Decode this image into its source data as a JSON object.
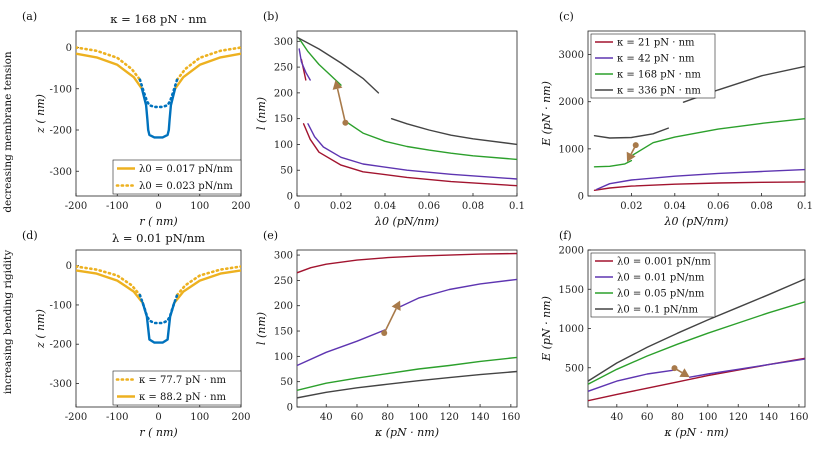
{
  "side_labels": {
    "top": "decreasing membrane tension",
    "bottom": "increasing bending rigidity"
  },
  "colors": {
    "gold": "#EDB120",
    "blue": "#0072BD",
    "red": "#A2142F",
    "purple": "#5E35B1",
    "green": "#2CA02C",
    "gray": "#444444",
    "arrow": "#A87A4A"
  },
  "chart_data": [
    {
      "panel": "(a)",
      "type": "line",
      "title": "κ = 168 pN · nm",
      "xlabel": "r  ( nm)",
      "ylabel": "z  ( nm)",
      "xlim": [
        -200,
        200
      ],
      "ylim": [
        -360,
        40
      ],
      "xticks": [
        "-200",
        "-100",
        "0",
        "100",
        "200"
      ],
      "yticks": [
        "0",
        "-100",
        "-200",
        "-300"
      ],
      "legend": [
        "λ0 = 0.017 pN/nm",
        "λ0 = 0.023 pN/nm"
      ],
      "series": [
        {
          "name": "λ0 = 0.017 pN/nm",
          "style": "solid",
          "color": "gold",
          "x": [
            -200,
            -150,
            -100,
            -60,
            -40
          ],
          "y": [
            -15,
            -24,
            -42,
            -72,
            -100
          ]
        },
        {
          "name": "λ0 = 0.017 pN/nm",
          "style": "solid",
          "color": "gold",
          "x": [
            40,
            60,
            100,
            150,
            200
          ],
          "y": [
            -100,
            -72,
            -42,
            -24,
            -15
          ]
        },
        {
          "name": "λ0 = 0.017 pN/nm",
          "style": "solid",
          "color": "blue",
          "x": [
            -40,
            -30,
            -27,
            -25,
            -22,
            -10,
            0,
            10,
            22,
            25,
            27,
            30,
            40
          ],
          "y": [
            -100,
            -140,
            -175,
            -200,
            -212,
            -218,
            -218,
            -218,
            -212,
            -200,
            -175,
            -140,
            -100
          ]
        },
        {
          "name": "λ0 = 0.023 pN/nm",
          "style": "dotted",
          "color": "gold",
          "x": [
            -200,
            -150,
            -100,
            -65,
            -45
          ],
          "y": [
            0,
            -8,
            -25,
            -52,
            -78
          ]
        },
        {
          "name": "λ0 = 0.023 pN/nm",
          "style": "dotted",
          "color": "gold",
          "x": [
            45,
            65,
            100,
            150,
            200
          ],
          "y": [
            -78,
            -52,
            -25,
            -8,
            0
          ]
        },
        {
          "name": "λ0 = 0.023 pN/nm",
          "style": "dotted",
          "color": "blue",
          "x": [
            -45,
            -35,
            -28,
            -22,
            -10,
            0,
            10,
            22,
            28,
            35,
            45
          ],
          "y": [
            -78,
            -110,
            -130,
            -140,
            -144,
            -144,
            -144,
            -140,
            -130,
            -110,
            -78
          ]
        }
      ]
    },
    {
      "panel": "(b)",
      "type": "line",
      "xlabel": "λ0 (pN/nm)",
      "ylabel": "l (nm)",
      "xlim": [
        0,
        0.1
      ],
      "ylim": [
        0,
        320
      ],
      "xticks": [
        "0",
        "0.02",
        "0.04",
        "0.06",
        "0.08",
        "0.1"
      ],
      "yticks": [
        "0",
        "50",
        "100",
        "150",
        "200",
        "250",
        "300"
      ],
      "series": [
        {
          "name": "red",
          "color": "red",
          "x": [
            0.002,
            0.003,
            0.004
          ],
          "y": [
            265,
            245,
            225
          ]
        },
        {
          "name": "red",
          "color": "red",
          "x": [
            0.003,
            0.006,
            0.01,
            0.02,
            0.03,
            0.05,
            0.07,
            0.1
          ],
          "y": [
            140,
            110,
            85,
            60,
            47,
            36,
            28,
            20
          ]
        },
        {
          "name": "purple",
          "color": "purple",
          "x": [
            0.001,
            0.002,
            0.004,
            0.006
          ],
          "y": [
            285,
            260,
            240,
            225
          ]
        },
        {
          "name": "purple",
          "color": "purple",
          "x": [
            0.005,
            0.008,
            0.012,
            0.02,
            0.03,
            0.05,
            0.07,
            0.1
          ],
          "y": [
            140,
            115,
            95,
            75,
            62,
            50,
            42,
            33
          ]
        },
        {
          "name": "green",
          "color": "green",
          "x": [
            0.001,
            0.005,
            0.01,
            0.015,
            0.02
          ],
          "y": [
            305,
            280,
            255,
            235,
            215
          ]
        },
        {
          "name": "green",
          "color": "green",
          "x": [
            0.022,
            0.03,
            0.04,
            0.05,
            0.06,
            0.07,
            0.08,
            0.1
          ],
          "y": [
            145,
            122,
            106,
            96,
            89,
            83,
            78,
            71
          ]
        },
        {
          "name": "gray",
          "color": "gray",
          "x": [
            0.0,
            0.01,
            0.02,
            0.03,
            0.037
          ],
          "y": [
            308,
            285,
            258,
            228,
            200
          ]
        },
        {
          "name": "gray",
          "color": "gray",
          "x": [
            0.043,
            0.05,
            0.06,
            0.07,
            0.08,
            0.1
          ],
          "y": [
            150,
            140,
            128,
            118,
            111,
            100
          ]
        }
      ],
      "marker": {
        "x": 0.022,
        "y": 142
      },
      "arrow": {
        "from": [
          0.022,
          142
        ],
        "to": [
          0.0175,
          225
        ]
      }
    },
    {
      "panel": "(c)",
      "type": "line",
      "xlabel": "λ0  (pN/nm)",
      "ylabel": "E (pN · nm)",
      "xlim": [
        0,
        0.1
      ],
      "ylim": [
        0,
        3500
      ],
      "xticks": [
        "0.02",
        "0.04",
        "0.06",
        "0.08",
        "0.1"
      ],
      "yticks": [
        "0",
        "1000",
        "2000",
        "3000"
      ],
      "legend": [
        "κ = 21 pN · nm",
        "κ = 42 pN · nm",
        "κ = 168 pN · nm",
        "κ = 336 pN · nm"
      ],
      "series": [
        {
          "name": "κ = 21 pN · nm",
          "color": "red",
          "x": [
            0.003,
            0.01,
            0.02,
            0.04,
            0.06,
            0.08,
            0.1
          ],
          "y": [
            120,
            170,
            210,
            250,
            275,
            290,
            300
          ]
        },
        {
          "name": "κ = 42 pN · nm",
          "color": "purple",
          "x": [
            0.004,
            0.01,
            0.02,
            0.04,
            0.06,
            0.08,
            0.1
          ],
          "y": [
            140,
            260,
            340,
            420,
            480,
            520,
            560
          ]
        },
        {
          "name": "κ = 168 pN · nm",
          "color": "green",
          "x": [
            0.003,
            0.01,
            0.017,
            0.02
          ],
          "y": [
            620,
            630,
            680,
            750
          ]
        },
        {
          "name": "κ = 168 pN · nm",
          "color": "green",
          "x": [
            0.02,
            0.03,
            0.04,
            0.06,
            0.08,
            0.1
          ],
          "y": [
            850,
            1130,
            1250,
            1420,
            1540,
            1640
          ]
        },
        {
          "name": "κ = 336 pN · nm",
          "color": "gray",
          "x": [
            0.003,
            0.01,
            0.02,
            0.03,
            0.037
          ],
          "y": [
            1280,
            1230,
            1240,
            1320,
            1440
          ]
        },
        {
          "name": "κ = 336 pN · nm",
          "color": "gray",
          "x": [
            0.044,
            0.06,
            0.08,
            0.1
          ],
          "y": [
            1990,
            2250,
            2550,
            2750
          ]
        }
      ],
      "marker": {
        "x": 0.022,
        "y": 1080
      },
      "arrow": {
        "from": [
          0.022,
          1080
        ],
        "to": [
          0.018,
          720
        ]
      }
    },
    {
      "panel": "(d)",
      "type": "line",
      "title": "λ = 0.01 pN/nm",
      "xlabel": "r  ( nm)",
      "ylabel": "z  ( nm)",
      "xlim": [
        -200,
        200
      ],
      "ylim": [
        -360,
        40
      ],
      "xticks": [
        "-200",
        "-100",
        "0",
        "100",
        "200"
      ],
      "yticks": [
        "0",
        "-100",
        "-200",
        "-300"
      ],
      "legend": [
        "κ = 77.7 pN · nm",
        "κ = 88.2 pN · nm"
      ],
      "series": [
        {
          "name": "κ = 88.2 pN · nm",
          "style": "solid",
          "color": "gold",
          "x": [
            -200,
            -150,
            -100,
            -60,
            -38
          ],
          "y": [
            -12,
            -20,
            -38,
            -66,
            -95
          ]
        },
        {
          "name": "κ = 88.2 pN · nm",
          "style": "solid",
          "color": "gold",
          "x": [
            38,
            60,
            100,
            150,
            200
          ],
          "y": [
            -95,
            -66,
            -38,
            -20,
            -12
          ]
        },
        {
          "name": "κ = 88.2 pN · nm",
          "style": "solid",
          "color": "blue",
          "x": [
            -38,
            -28,
            -25,
            -22,
            -10,
            0,
            10,
            22,
            25,
            28,
            38
          ],
          "y": [
            -95,
            -130,
            -160,
            -188,
            -196,
            -196,
            -196,
            -188,
            -160,
            -130,
            -95
          ]
        },
        {
          "name": "κ = 77.7 pN · nm",
          "style": "dotted",
          "color": "gold",
          "x": [
            -200,
            -150,
            -100,
            -65,
            -45
          ],
          "y": [
            -2,
            -10,
            -25,
            -50,
            -75
          ]
        },
        {
          "name": "κ = 77.7 pN · nm",
          "style": "dotted",
          "color": "gold",
          "x": [
            45,
            65,
            100,
            150,
            200
          ],
          "y": [
            -75,
            -50,
            -25,
            -10,
            -2
          ]
        },
        {
          "name": "κ = 77.7 pN · nm",
          "style": "dotted",
          "color": "blue",
          "x": [
            -45,
            -35,
            -28,
            -22,
            -10,
            0,
            10,
            22,
            28,
            35,
            45
          ],
          "y": [
            -75,
            -105,
            -128,
            -140,
            -146,
            -146,
            -146,
            -140,
            -128,
            -105,
            -75
          ]
        }
      ]
    },
    {
      "panel": "(e)",
      "type": "line",
      "xlabel": "κ (pN · nm)",
      "ylabel": "l (nm)",
      "xlim": [
        21,
        164
      ],
      "ylim": [
        0,
        310
      ],
      "xticks": [
        "40",
        "60",
        "80",
        "100",
        "120",
        "140",
        "160"
      ],
      "yticks": [
        "0",
        "50",
        "100",
        "150",
        "200",
        "250",
        "300"
      ],
      "series": [
        {
          "name": "red",
          "color": "red",
          "x": [
            21,
            30,
            40,
            60,
            80,
            100,
            120,
            140,
            164
          ],
          "y": [
            265,
            275,
            282,
            290,
            295,
            298,
            300,
            302,
            303
          ]
        },
        {
          "name": "purple",
          "color": "purple",
          "x": [
            21,
            40,
            60,
            78
          ],
          "y": [
            82,
            108,
            130,
            152
          ]
        },
        {
          "name": "purple",
          "color": "purple",
          "x": [
            88,
            100,
            120,
            140,
            164
          ],
          "y": [
            198,
            215,
            232,
            243,
            252
          ]
        },
        {
          "name": "green",
          "color": "green",
          "x": [
            21,
            40,
            60,
            80,
            100,
            120,
            140,
            164
          ],
          "y": [
            33,
            47,
            57,
            66,
            75,
            82,
            90,
            98
          ]
        },
        {
          "name": "gray",
          "color": "gray",
          "x": [
            21,
            40,
            60,
            80,
            100,
            120,
            140,
            164
          ],
          "y": [
            18,
            29,
            38,
            45,
            52,
            58,
            64,
            70
          ]
        }
      ],
      "marker": {
        "x": 77.7,
        "y": 146
      },
      "arrow": {
        "from": [
          77.7,
          146
        ],
        "to": [
          88,
          210
        ]
      }
    },
    {
      "panel": "(f)",
      "type": "line",
      "xlabel": "κ (pN · nm)",
      "ylabel": "E (pN · nm)",
      "xlim": [
        21,
        164
      ],
      "ylim": [
        0,
        2000
      ],
      "xticks": [
        "40",
        "60",
        "80",
        "100",
        "120",
        "140",
        "160"
      ],
      "yticks": [
        "500",
        "1000",
        "1500",
        "2000"
      ],
      "legend": [
        "λ0 = 0.001 pN/nm",
        "λ0 = 0.01 pN/nm",
        "λ0 = 0.05 pN/nm",
        "λ0 = 0.1 pN/nm"
      ],
      "series": [
        {
          "name": "λ0 = 0.001 pN/nm",
          "color": "red",
          "x": [
            21,
            40,
            60,
            80,
            100,
            120,
            140,
            164
          ],
          "y": [
            80,
            160,
            240,
            320,
            400,
            470,
            540,
            620
          ]
        },
        {
          "name": "λ0 = 0.01 pN/nm",
          "color": "purple",
          "x": [
            21,
            40,
            60,
            78
          ],
          "y": [
            200,
            330,
            420,
            470
          ]
        },
        {
          "name": "λ0 = 0.01 pN/nm",
          "color": "purple",
          "x": [
            88,
            100,
            120,
            140,
            164
          ],
          "y": [
            380,
            420,
            480,
            540,
            610
          ]
        },
        {
          "name": "λ0 = 0.05 pN/nm",
          "color": "green",
          "x": [
            21,
            40,
            60,
            80,
            100,
            120,
            140,
            164
          ],
          "y": [
            290,
            480,
            650,
            800,
            940,
            1070,
            1200,
            1340
          ]
        },
        {
          "name": "λ0 = 0.1 pN/nm",
          "color": "gray",
          "x": [
            21,
            40,
            60,
            80,
            100,
            120,
            140,
            164
          ],
          "y": [
            330,
            560,
            760,
            940,
            1110,
            1270,
            1430,
            1630
          ]
        }
      ],
      "marker": {
        "x": 78,
        "y": 495
      },
      "arrow": {
        "from": [
          78,
          495
        ],
        "to": [
          88,
          380
        ]
      }
    }
  ]
}
